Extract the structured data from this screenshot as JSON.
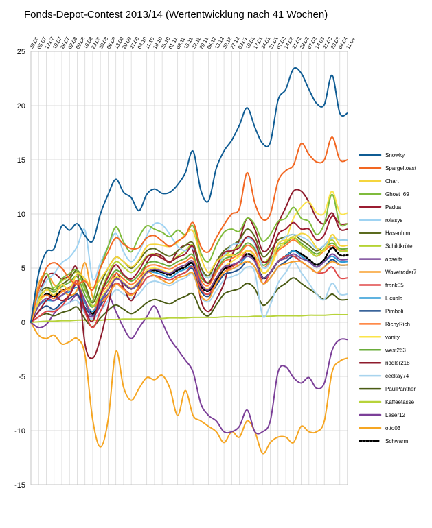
{
  "chart_data": {
    "type": "line",
    "title": "Fonds-Depot-Contest 2013/14 (Wertentwicklung nach 41 Wochen)",
    "xlabel": "",
    "ylabel": "",
    "ylim": [
      -15,
      25
    ],
    "yticks": [
      -15,
      -10,
      -5,
      0,
      5,
      10,
      15,
      20,
      25
    ],
    "grid": true,
    "legend": "right",
    "categories": [
      "28.06",
      "05.07",
      "12.07",
      "19.07",
      "26.07",
      "02.08",
      "09.08",
      "16.08",
      "23.08",
      "30.08",
      "06.09",
      "13.09",
      "20.09",
      "27.09",
      "04.10",
      "11.10",
      "18.10",
      "25.10",
      "01.11",
      "08.11",
      "15.11",
      "22.11",
      "29.11",
      "06.12",
      "13.12",
      "20.12",
      "27.12",
      "03.01",
      "10.01",
      "17.01",
      "24.01",
      "31.01",
      "07.02",
      "14.02",
      "21.02",
      "28.02",
      "07.03",
      "14.03",
      "21.03",
      "28.03",
      "04.04",
      "11.04"
    ],
    "series": [
      {
        "name": "Snowky",
        "color": "#0f5c94",
        "values": [
          0,
          4.5,
          6.5,
          6.8,
          8.9,
          8.5,
          9.1,
          8,
          7.5,
          10,
          11.8,
          13.2,
          12,
          11.5,
          10.3,
          11.8,
          12.3,
          11.9,
          12,
          12.7,
          13.8,
          15.8,
          12.2,
          11.2,
          14.2,
          15.8,
          16.8,
          18.2,
          19.8,
          18,
          16.5,
          16.6,
          20.5,
          21.5,
          23.4,
          23,
          21.5,
          20.2,
          20.1,
          22.8,
          19.3,
          19.3
        ]
      },
      {
        "name": "Spargeltoast",
        "color": "#f26722",
        "values": [
          0,
          3,
          5,
          5.5,
          5,
          4,
          3.5,
          3.8,
          3,
          5,
          6.5,
          7.8,
          7.2,
          6.8,
          6.9,
          7.8,
          8,
          7.5,
          7,
          7.5,
          8,
          9.2,
          7,
          6.5,
          7.8,
          9,
          10,
          10.5,
          13.8,
          11,
          9.5,
          10,
          13,
          14,
          14.5,
          16.5,
          15.5,
          14.8,
          15,
          17.1,
          15,
          15
        ]
      },
      {
        "name": "Chart",
        "color": "#f5d53d",
        "values": [
          0,
          2,
          3,
          2.5,
          3.5,
          3,
          4.5,
          4,
          3.2,
          4,
          5,
          6,
          5.6,
          5.1,
          5.8,
          7,
          7.2,
          7.1,
          7,
          7.4,
          8.1,
          8.4,
          6,
          4.6,
          5.6,
          6.1,
          6.2,
          6.1,
          6.6,
          6.2,
          4.6,
          5.1,
          7.2,
          7.6,
          7.8,
          8.2,
          7.9,
          6.9,
          6.6,
          8.1,
          7.1,
          7.1
        ]
      },
      {
        "name": "Ghost_69",
        "color": "#7fbb3c",
        "values": [
          0,
          3,
          4.5,
          3,
          4,
          4.5,
          4.8,
          3,
          2,
          5,
          7,
          8.8,
          7.4,
          6.5,
          7.9,
          8.9,
          8.6,
          8.3,
          7.9,
          8.5,
          8.1,
          8.9,
          6.4,
          5.6,
          7.1,
          8.3,
          8.6,
          8.4,
          9.6,
          9,
          7.5,
          8.1,
          9.3,
          9.6,
          10.6,
          9.6,
          9.3,
          8.1,
          9.1,
          11.8,
          9.1,
          9.1
        ]
      },
      {
        "name": "Padua",
        "color": "#9b1c31",
        "values": [
          0,
          1,
          2,
          2.5,
          2,
          2.5,
          3.5,
          1.2,
          0.1,
          2.5,
          4.2,
          5.3,
          4.4,
          4,
          4.8,
          6,
          6.2,
          5.9,
          5.6,
          6,
          6.3,
          7,
          4.6,
          3.6,
          5.1,
          6.4,
          6.6,
          6.9,
          7.9,
          7.4,
          5.6,
          6,
          8.1,
          8.6,
          9.2,
          8.6,
          8.6,
          7.6,
          8.1,
          9.8,
          9.1,
          9.1
        ]
      },
      {
        "name": "rolasys",
        "color": "#9fd3f2",
        "values": [
          0,
          2.5,
          3.8,
          4.5,
          5.5,
          6,
          7,
          8.5,
          4,
          5.5,
          7,
          8.2,
          6.5,
          5.6,
          6.5,
          8,
          9.1,
          9,
          8.1,
          7,
          6.6,
          6.8,
          4.8,
          4.1,
          5.1,
          6.1,
          7.1,
          7.3,
          7.8,
          7.2,
          5.1,
          5.5,
          7.1,
          7.9,
          8.1,
          7.9,
          7.5,
          6.8,
          7.1,
          7.8,
          7.6,
          7.6
        ]
      },
      {
        "name": "Hasenhirn",
        "color": "#5b6b1e",
        "values": [
          0,
          2.5,
          3.2,
          3,
          3.5,
          4,
          4.8,
          3.5,
          1.8,
          3.5,
          5,
          6,
          5.6,
          5,
          5.7,
          6.6,
          6.8,
          6.4,
          6.1,
          6.6,
          7.1,
          7.3,
          5.1,
          4.3,
          5.6,
          6.6,
          7.1,
          7.6,
          8.6,
          7.9,
          6.1,
          6.6,
          7.6,
          7.9,
          8.1,
          7.6,
          7.1,
          6.6,
          7.1,
          7.8,
          7.6,
          7.6
        ]
      },
      {
        "name": "Schildkröte",
        "color": "#b5d334",
        "values": [
          0,
          2,
          3,
          3.2,
          3.8,
          4.2,
          4.6,
          3.3,
          1.5,
          2.8,
          4.5,
          5.6,
          5.1,
          4.6,
          5.2,
          6.1,
          6.3,
          5.9,
          5.6,
          6.1,
          6.6,
          7.1,
          5.1,
          4.1,
          5.1,
          6.1,
          6.6,
          7.1,
          7.9,
          7.4,
          5.6,
          6.1,
          7.1,
          7.4,
          7.9,
          7.1,
          6.6,
          6.1,
          6.8,
          7.6,
          6.6,
          6.6
        ]
      },
      {
        "name": "abseits",
        "color": "#7b4a9a",
        "values": [
          0,
          1.5,
          2.2,
          2,
          2.5,
          3,
          3.5,
          2,
          0.5,
          1.8,
          3,
          4,
          3.6,
          3.1,
          3.7,
          4.6,
          4.9,
          4.7,
          4.5,
          5,
          5.3,
          5.6,
          3.6,
          3,
          4.1,
          5.1,
          5.3,
          5.6,
          6.1,
          5.6,
          4.1,
          4.6,
          5.6,
          5.9,
          6.3,
          5.9,
          5.6,
          5.1,
          5.6,
          6.3,
          5.8,
          5.8
        ]
      },
      {
        "name": "Wavetrader7",
        "color": "#f9a12e",
        "values": [
          0,
          3.5,
          4.5,
          3.5,
          3,
          2.5,
          3,
          5.5,
          2.3,
          1.9,
          2.5,
          3.5,
          3,
          2.5,
          3.3,
          4.6,
          4.3,
          3.9,
          3.6,
          4.1,
          4.3,
          4.5,
          2.5,
          2.1,
          3.6,
          4.6,
          4.9,
          5.3,
          5.6,
          5.1,
          3.6,
          4.1,
          5.1,
          5.4,
          5.6,
          5.6,
          5.1,
          4.6,
          5.1,
          5.6,
          5.3,
          5.3
        ]
      },
      {
        "name": "frank05",
        "color": "#e04848",
        "values": [
          0,
          0.5,
          1,
          1,
          1.5,
          2.5,
          3.8,
          1,
          -0.5,
          1,
          2.5,
          3.6,
          3.1,
          2.6,
          3.1,
          4.1,
          4.3,
          4.1,
          3.9,
          4.3,
          4.6,
          5.1,
          3.1,
          2.6,
          3.6,
          4.6,
          5.1,
          5.6,
          6.6,
          6.1,
          3.6,
          4.6,
          5.6,
          6.1,
          6.1,
          5.6,
          5.1,
          4.6,
          4.6,
          5.1,
          4.1,
          4.1
        ]
      },
      {
        "name": "Licuala",
        "color": "#2b9ad6",
        "values": [
          0,
          1.5,
          2,
          2,
          2.5,
          2.8,
          3.2,
          1.8,
          1,
          2,
          3,
          4,
          3.6,
          3.1,
          3.6,
          4.6,
          4.6,
          4.4,
          4.1,
          4.6,
          4.9,
          5.1,
          3.1,
          2.6,
          3.6,
          4.6,
          4.9,
          5.3,
          6.1,
          5.6,
          4.1,
          4.6,
          5.6,
          6.1,
          6.6,
          6.1,
          5.6,
          5.1,
          5.6,
          6.1,
          5.6,
          5.6
        ]
      },
      {
        "name": "Pimboli",
        "color": "#1f4e8c",
        "values": [
          0,
          1,
          1.5,
          1.2,
          1.8,
          2.2,
          2.6,
          1.4,
          0.6,
          1.6,
          2.6,
          3.6,
          3.1,
          2.6,
          3.1,
          4.1,
          4.3,
          4.1,
          3.9,
          4.3,
          4.6,
          4.9,
          2.9,
          2.4,
          3.4,
          4.4,
          4.6,
          4.9,
          5.6,
          5.1,
          3.6,
          4.1,
          5.1,
          5.6,
          6.1,
          5.6,
          5.1,
          4.6,
          5.1,
          5.8,
          5.3,
          5.3
        ]
      },
      {
        "name": "RichyRich",
        "color": "#ff7a30",
        "values": [
          0,
          2,
          2.5,
          2.2,
          2.8,
          3.2,
          3.6,
          2,
          1,
          2.5,
          3.5,
          4.5,
          4,
          3.5,
          4.1,
          5.1,
          5.3,
          5.1,
          4.9,
          5.3,
          5.6,
          5.9,
          3.9,
          3.4,
          4.6,
          5.6,
          5.9,
          6.3,
          7.1,
          6.6,
          5.1,
          5.6,
          6.6,
          7.1,
          7.6,
          7.1,
          6.6,
          6.1,
          6.6,
          7.1,
          6.6,
          6.6
        ]
      },
      {
        "name": "vanity",
        "color": "#fbe44a",
        "values": [
          0,
          1.8,
          2.5,
          2.2,
          2.8,
          3.2,
          3.8,
          2,
          1,
          2.2,
          3.2,
          4.2,
          3.7,
          3.2,
          3.8,
          4.8,
          5,
          4.8,
          4.6,
          5,
          5.3,
          5.6,
          3.6,
          3.1,
          4.1,
          5.1,
          5.6,
          6.1,
          6.6,
          6.1,
          4.6,
          5.1,
          6.6,
          7.6,
          9.6,
          10.6,
          11.1,
          10.1,
          10.1,
          12.1,
          10.1,
          10.1
        ]
      },
      {
        "name": "west263",
        "color": "#6aac3a",
        "values": [
          0,
          2.2,
          3,
          2.8,
          3.3,
          3.7,
          4.2,
          2.5,
          1.4,
          2.8,
          3.8,
          4.8,
          4.3,
          3.8,
          4.4,
          5.4,
          5.6,
          5.4,
          5.2,
          5.6,
          5.9,
          6.2,
          4.2,
          3.7,
          4.8,
          5.8,
          6.1,
          6.5,
          7.3,
          6.8,
          5.3,
          5.8,
          6.8,
          7.3,
          7.8,
          7.3,
          6.8,
          6.3,
          6.8,
          7.3,
          6.8,
          6.8
        ]
      },
      {
        "name": "riddler218",
        "color": "#8e1b2c",
        "values": [
          0,
          2.5,
          4.2,
          4.5,
          4,
          4.3,
          4.8,
          -2,
          -3.3,
          -1.5,
          1.5,
          4.5,
          3.2,
          2,
          3.5,
          5.5,
          6.3,
          6.1,
          5.5,
          6.6,
          7.1,
          6.6,
          2.1,
          1,
          2.1,
          3.6,
          6.1,
          7.6,
          9.6,
          8.6,
          6.6,
          7.1,
          9.1,
          10.6,
          12.1,
          12.1,
          11.1,
          9.6,
          9.1,
          10.1,
          8.6,
          8.6
        ]
      },
      {
        "name": "ceekay74",
        "color": "#a8d4ee",
        "values": [
          0,
          0.5,
          1,
          1.2,
          1.5,
          1.8,
          2,
          0.8,
          0.3,
          1,
          2,
          3,
          2.6,
          2.2,
          2.6,
          3.5,
          3.8,
          3.6,
          3.4,
          3.8,
          4.1,
          4.4,
          2.4,
          1.9,
          2.9,
          3.9,
          4.2,
          4.5,
          5.1,
          4.6,
          0.6,
          1.6,
          3.6,
          4.6,
          5.6,
          4.6,
          3.6,
          2.6,
          2.1,
          3.6,
          2.6,
          2.6
        ]
      },
      {
        "name": "PaulPanther",
        "color": "#4a5b14",
        "values": [
          0,
          0.5,
          0.8,
          0.6,
          0.9,
          1.1,
          1.4,
          0.3,
          -0.4,
          0.4,
          1.1,
          1.6,
          1.2,
          0.8,
          1.2,
          1.8,
          2.1,
          1.9,
          1.7,
          2.1,
          2.4,
          2.6,
          1.1,
          0.6,
          1.6,
          2.6,
          2.9,
          3.1,
          3.6,
          3.1,
          1.6,
          2.1,
          3.1,
          3.6,
          4.1,
          3.6,
          3.1,
          2.6,
          2.1,
          2.6,
          2.1,
          2.1
        ]
      },
      {
        "name": "Kaffeetasse",
        "color": "#b7d33a",
        "values": [
          0,
          0.05,
          0.1,
          0.1,
          0.15,
          0.15,
          0.2,
          0.2,
          0.2,
          0.2,
          0.25,
          0.25,
          0.3,
          0.3,
          0.3,
          0.35,
          0.35,
          0.35,
          0.4,
          0.4,
          0.4,
          0.45,
          0.45,
          0.45,
          0.45,
          0.5,
          0.5,
          0.5,
          0.5,
          0.55,
          0.55,
          0.55,
          0.6,
          0.6,
          0.6,
          0.6,
          0.65,
          0.65,
          0.65,
          0.7,
          0.7,
          0.7
        ]
      },
      {
        "name": "Laser12",
        "color": "#7b3f98",
        "values": [
          0,
          -0.5,
          -0.2,
          0.8,
          1.5,
          1.8,
          2.5,
          1,
          0.5,
          1.5,
          2.5,
          1,
          -0.5,
          -1.5,
          -0.5,
          0.5,
          1.5,
          0,
          -1.5,
          -2.5,
          -3.5,
          -4.6,
          -7.5,
          -8.6,
          -9.1,
          -10.1,
          -10.1,
          -9.6,
          -8.1,
          -10.1,
          -10.1,
          -9.1,
          -4.6,
          -4.1,
          -5.1,
          -5.6,
          -5.1,
          -6.1,
          -5.6,
          -2.6,
          -1.6,
          -1.6
        ]
      },
      {
        "name": "otto03",
        "color": "#f6a623",
        "values": [
          0,
          -1.2,
          -1.5,
          -1.2,
          -2,
          -1.8,
          -1.5,
          -3,
          -9,
          -11.5,
          -9,
          -2.7,
          -6,
          -7.2,
          -6.1,
          -5.1,
          -5.3,
          -4.9,
          -6.1,
          -8.6,
          -6.3,
          -8.6,
          -9.1,
          -9.6,
          -10.1,
          -11.1,
          -10.1,
          -10.6,
          -9.1,
          -10.1,
          -12.1,
          -11.1,
          -10.6,
          -10.6,
          -11.1,
          -9.6,
          -10.1,
          -10.1,
          -9.1,
          -4.6,
          -3.6,
          -3.3
        ]
      },
      {
        "name": "Schwarm",
        "color": "#000000",
        "dashed": true,
        "values": [
          0,
          1.8,
          2.6,
          2.4,
          2.9,
          3.2,
          3.6,
          1.9,
          0.8,
          2.1,
          3.1,
          4.1,
          3.6,
          3.1,
          3.7,
          4.6,
          4.8,
          4.6,
          4.4,
          4.8,
          5.1,
          5.4,
          3.4,
          2.9,
          3.9,
          4.9,
          5.2,
          5.6,
          6.3,
          5.8,
          4.1,
          4.6,
          5.6,
          6.1,
          6.6,
          6.3,
          5.8,
          5.3,
          5.8,
          6.9,
          6.2,
          6.2
        ]
      }
    ]
  }
}
